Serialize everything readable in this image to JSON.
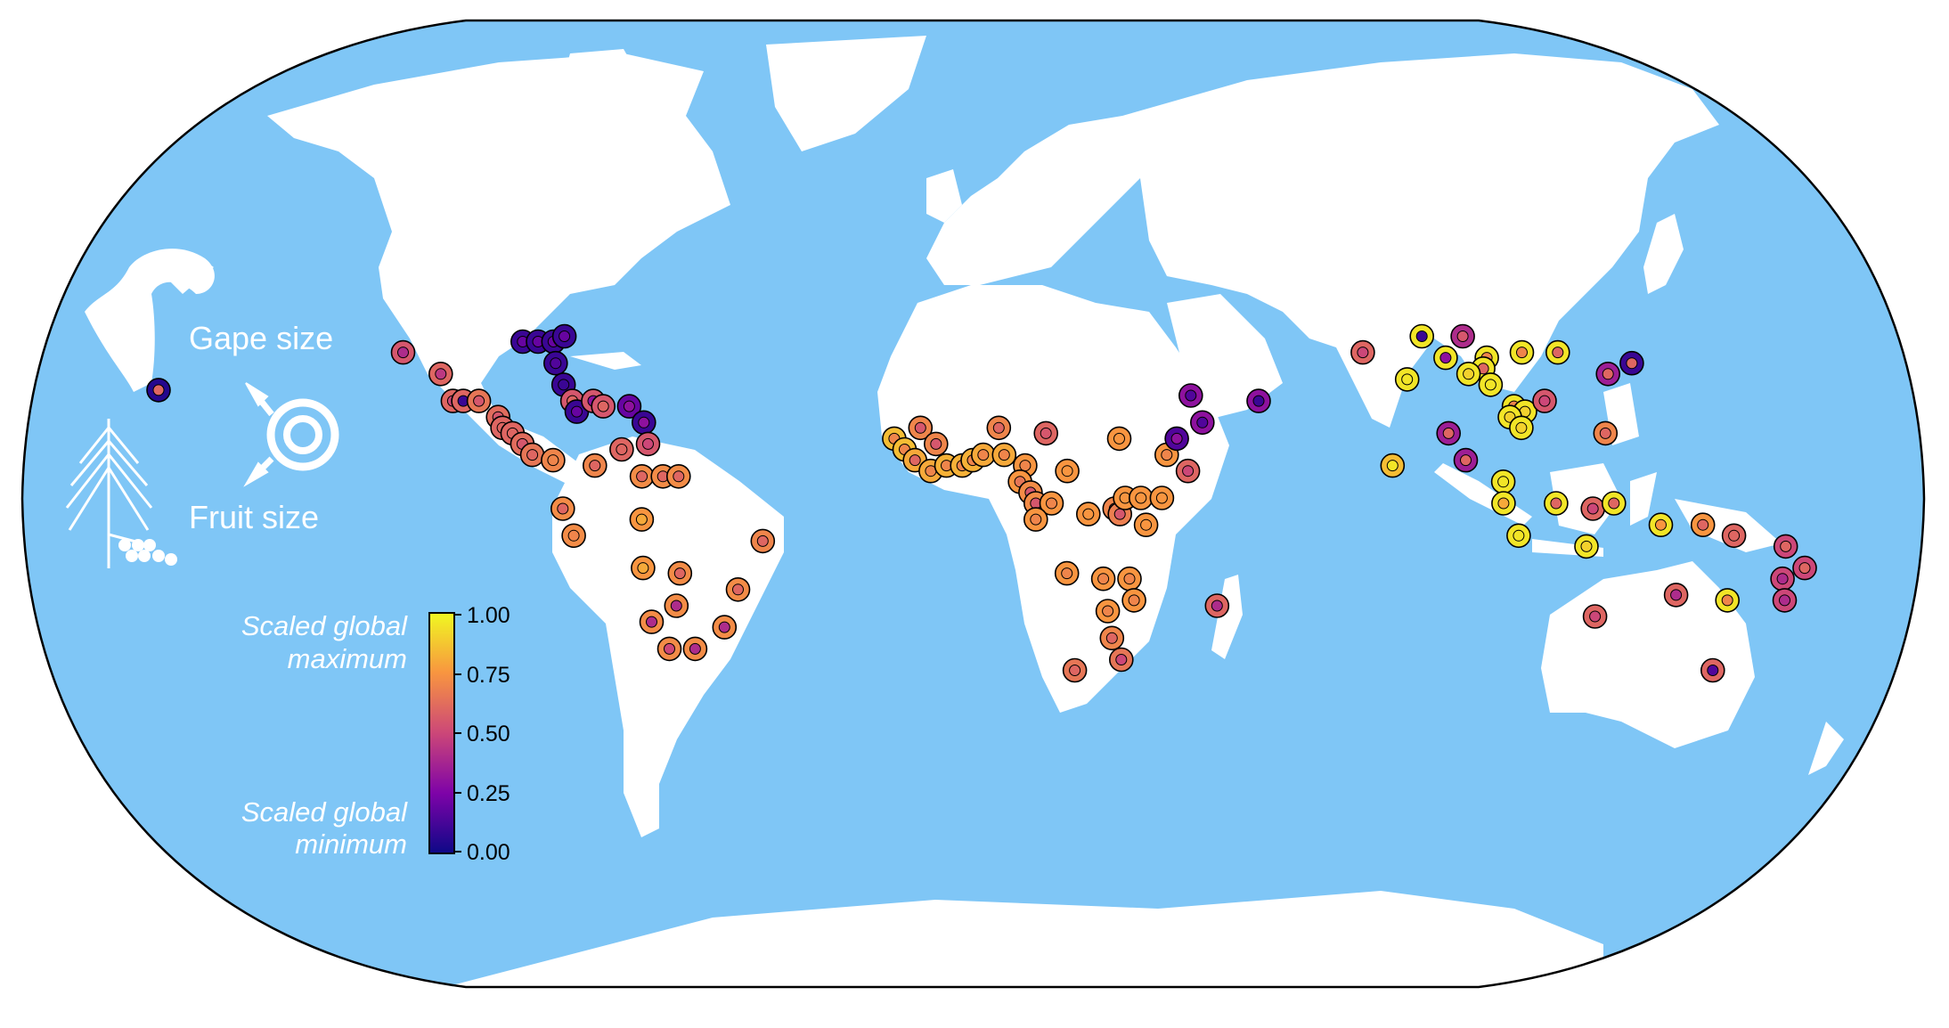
{
  "legend": {
    "gape_label": "Gape size",
    "fruit_label": "Fruit size",
    "colorbar_top_label_1": "Scaled global",
    "colorbar_top_label_2": "maximum",
    "colorbar_bottom_label_1": "Scaled global",
    "colorbar_bottom_label_2": "minimum",
    "ticks": [
      "1.00",
      "0.75",
      "0.50",
      "0.25",
      "0.00"
    ]
  },
  "colors": {
    "ocean": "#7fc6f6",
    "land": "#ffffff",
    "outline": "#000000",
    "scale_low": "#1b0c6b",
    "scale_mid": "#b23a8f",
    "scale_high": "#f9f33c"
  },
  "icons": [
    "toucan-icon",
    "palm-fruit-icon",
    "gape-fruit-arrow-icon"
  ],
  "chart_data": {
    "type": "scatter",
    "note_colorscale": "plasma-like, 0.00 to 1.00",
    "series": [
      {
        "name": "Gape size",
        "values_desc": "outer ring color"
      },
      {
        "name": "Fruit size",
        "values_desc": "inner dot color"
      }
    ],
    "points": [
      {
        "lon": -157,
        "lat": 21,
        "gape": 0.05,
        "fruit": 0.6
      },
      {
        "lon": -111,
        "lat": 28,
        "gape": 0.55,
        "fruit": 0.4
      },
      {
        "lon": -103,
        "lat": 24,
        "gape": 0.6,
        "fruit": 0.45
      },
      {
        "lon": -100,
        "lat": 19,
        "gape": 0.6,
        "fruit": 0.5
      },
      {
        "lon": -98,
        "lat": 19,
        "gape": 0.6,
        "fruit": 0.1
      },
      {
        "lon": -95,
        "lat": 19,
        "gape": 0.65,
        "fruit": 0.55
      },
      {
        "lon": -91,
        "lat": 16,
        "gape": 0.62,
        "fruit": 0.55
      },
      {
        "lon": -90,
        "lat": 14,
        "gape": 0.6,
        "fruit": 0.6
      },
      {
        "lon": -88,
        "lat": 13,
        "gape": 0.6,
        "fruit": 0.6
      },
      {
        "lon": -86,
        "lat": 11,
        "gape": 0.62,
        "fruit": 0.55
      },
      {
        "lon": -84,
        "lat": 9,
        "gape": 0.65,
        "fruit": 0.6
      },
      {
        "lon": -80,
        "lat": 8,
        "gape": 0.7,
        "fruit": 0.7
      },
      {
        "lon": -88,
        "lat": 30,
        "gape": 0.1,
        "fruit": 0.2
      },
      {
        "lon": -85,
        "lat": 30,
        "gape": 0.1,
        "fruit": 0.2
      },
      {
        "lon": -82,
        "lat": 30,
        "gape": 0.1,
        "fruit": 0.2
      },
      {
        "lon": -80,
        "lat": 31,
        "gape": 0.1,
        "fruit": 0.2
      },
      {
        "lon": -81,
        "lat": 26,
        "gape": 0.1,
        "fruit": 0.15
      },
      {
        "lon": -79,
        "lat": 22,
        "gape": 0.1,
        "fruit": 0.1
      },
      {
        "lon": -77,
        "lat": 19,
        "gape": 0.55,
        "fruit": 0.6
      },
      {
        "lon": -76,
        "lat": 17,
        "gape": 0.1,
        "fruit": 0.2
      },
      {
        "lon": -73,
        "lat": 19,
        "gape": 0.55,
        "fruit": 0.3
      },
      {
        "lon": -71,
        "lat": 18,
        "gape": 0.55,
        "fruit": 0.6
      },
      {
        "lon": -66,
        "lat": 18,
        "gape": 0.2,
        "fruit": 0.3
      },
      {
        "lon": -63,
        "lat": 15,
        "gape": 0.1,
        "fruit": 0.3
      },
      {
        "lon": -62,
        "lat": 11,
        "gape": 0.55,
        "fruit": 0.5
      },
      {
        "lon": -67,
        "lat": 10,
        "gape": 0.6,
        "fruit": 0.6
      },
      {
        "lon": -72,
        "lat": 7,
        "gape": 0.7,
        "fruit": 0.6
      },
      {
        "lon": -63,
        "lat": 5,
        "gape": 0.72,
        "fruit": 0.6
      },
      {
        "lon": -59,
        "lat": 5,
        "gape": 0.72,
        "fruit": 0.6
      },
      {
        "lon": -56,
        "lat": 5,
        "gape": 0.72,
        "fruit": 0.6
      },
      {
        "lon": -78,
        "lat": -1,
        "gape": 0.72,
        "fruit": 0.6
      },
      {
        "lon": -76,
        "lat": -6,
        "gape": 0.72,
        "fruit": 0.7
      },
      {
        "lon": -63,
        "lat": -3,
        "gape": 0.75,
        "fruit": 0.8
      },
      {
        "lon": -40,
        "lat": -7,
        "gape": 0.7,
        "fruit": 0.6
      },
      {
        "lon": -63,
        "lat": -12,
        "gape": 0.75,
        "fruit": 0.8
      },
      {
        "lon": -56,
        "lat": -13,
        "gape": 0.72,
        "fruit": 0.6
      },
      {
        "lon": -45,
        "lat": -16,
        "gape": 0.72,
        "fruit": 0.6
      },
      {
        "lon": -57,
        "lat": -19,
        "gape": 0.72,
        "fruit": 0.4
      },
      {
        "lon": -48,
        "lat": -23,
        "gape": 0.72,
        "fruit": 0.4
      },
      {
        "lon": -62,
        "lat": -22,
        "gape": 0.72,
        "fruit": 0.4
      },
      {
        "lon": -59,
        "lat": -27,
        "gape": 0.72,
        "fruit": 0.5
      },
      {
        "lon": -54,
        "lat": -27,
        "gape": 0.72,
        "fruit": 0.4
      },
      {
        "lon": -15,
        "lat": 12,
        "gape": 0.85,
        "fruit": 0.7
      },
      {
        "lon": -13,
        "lat": 10,
        "gape": 0.85,
        "fruit": 0.7
      },
      {
        "lon": -11,
        "lat": 8,
        "gape": 0.8,
        "fruit": 0.6
      },
      {
        "lon": -8,
        "lat": 6,
        "gape": 0.8,
        "fruit": 0.7
      },
      {
        "lon": -5,
        "lat": 7,
        "gape": 0.82,
        "fruit": 0.7
      },
      {
        "lon": -2,
        "lat": 7,
        "gape": 0.82,
        "fruit": 0.7
      },
      {
        "lon": 0,
        "lat": 8,
        "gape": 0.82,
        "fruit": 0.7
      },
      {
        "lon": 2,
        "lat": 9,
        "gape": 0.8,
        "fruit": 0.7
      },
      {
        "lon": -10,
        "lat": 14,
        "gape": 0.7,
        "fruit": 0.55
      },
      {
        "lon": -7,
        "lat": 11,
        "gape": 0.7,
        "fruit": 0.55
      },
      {
        "lon": 5,
        "lat": 14,
        "gape": 0.7,
        "fruit": 0.6
      },
      {
        "lon": 14,
        "lat": 13,
        "gape": 0.6,
        "fruit": 0.55
      },
      {
        "lon": 28,
        "lat": 12,
        "gape": 0.75,
        "fruit": 0.75
      },
      {
        "lon": 6,
        "lat": 9,
        "gape": 0.8,
        "fruit": 0.7
      },
      {
        "lon": 10,
        "lat": 7,
        "gape": 0.75,
        "fruit": 0.7
      },
      {
        "lon": 9,
        "lat": 4,
        "gape": 0.75,
        "fruit": 0.65
      },
      {
        "lon": 11,
        "lat": 2,
        "gape": 0.72,
        "fruit": 0.55
      },
      {
        "lon": 12,
        "lat": 0,
        "gape": 0.72,
        "fruit": 0.55
      },
      {
        "lon": 15,
        "lat": 0,
        "gape": 0.75,
        "fruit": 0.7
      },
      {
        "lon": 12,
        "lat": -3,
        "gape": 0.75,
        "fruit": 0.7
      },
      {
        "lon": 18,
        "lat": 6,
        "gape": 0.75,
        "fruit": 0.75
      },
      {
        "lon": 22,
        "lat": -2,
        "gape": 0.75,
        "fruit": 0.75
      },
      {
        "lon": 27,
        "lat": -1,
        "gape": 0.7,
        "fruit": 0.6
      },
      {
        "lon": 28,
        "lat": -2,
        "gape": 0.68,
        "fruit": 0.55
      },
      {
        "lon": 29,
        "lat": 1,
        "gape": 0.75,
        "fruit": 0.75
      },
      {
        "lon": 32,
        "lat": 1,
        "gape": 0.75,
        "fruit": 0.75
      },
      {
        "lon": 36,
        "lat": 1,
        "gape": 0.75,
        "fruit": 0.75
      },
      {
        "lon": 37,
        "lat": 9,
        "gape": 0.75,
        "fruit": 0.7
      },
      {
        "lon": 39,
        "lat": 12,
        "gape": 0.15,
        "fruit": 0.3
      },
      {
        "lon": 41,
        "lat": 6,
        "gape": 0.6,
        "fruit": 0.5
      },
      {
        "lon": 33,
        "lat": -4,
        "gape": 0.75,
        "fruit": 0.75
      },
      {
        "lon": 18,
        "lat": -13,
        "gape": 0.75,
        "fruit": 0.7
      },
      {
        "lon": 25,
        "lat": -14,
        "gape": 0.75,
        "fruit": 0.7
      },
      {
        "lon": 30,
        "lat": -14,
        "gape": 0.75,
        "fruit": 0.7
      },
      {
        "lon": 31,
        "lat": -18,
        "gape": 0.75,
        "fruit": 0.7
      },
      {
        "lon": 26,
        "lat": -20,
        "gape": 0.75,
        "fruit": 0.7
      },
      {
        "lon": 27,
        "lat": -25,
        "gape": 0.7,
        "fruit": 0.6
      },
      {
        "lon": 29,
        "lat": -29,
        "gape": 0.65,
        "fruit": 0.5
      },
      {
        "lon": 20,
        "lat": -31,
        "gape": 0.65,
        "fruit": 0.6
      },
      {
        "lon": 47,
        "lat": -19,
        "gape": 0.6,
        "fruit": 0.4
      },
      {
        "lon": 42,
        "lat": 20,
        "gape": 0.3,
        "fruit": 0.15
      },
      {
        "lon": 44,
        "lat": 15,
        "gape": 0.3,
        "fruit": 0.15
      },
      {
        "lon": 55,
        "lat": 19,
        "gape": 0.3,
        "fruit": 0.1
      },
      {
        "lon": 76,
        "lat": 28,
        "gape": 0.6,
        "fruit": 0.5
      },
      {
        "lon": 88,
        "lat": 31,
        "gape": 0.95,
        "fruit": 0.1
      },
      {
        "lon": 96,
        "lat": 31,
        "gape": 0.4,
        "fruit": 0.55
      },
      {
        "lon": 92,
        "lat": 27,
        "gape": 0.95,
        "fruit": 0.3
      },
      {
        "lon": 84,
        "lat": 23,
        "gape": 0.95,
        "fruit": 0.95
      },
      {
        "lon": 100,
        "lat": 27,
        "gape": 0.95,
        "fruit": 0.7
      },
      {
        "lon": 99,
        "lat": 25,
        "gape": 0.95,
        "fruit": 0.6
      },
      {
        "lon": 96,
        "lat": 24,
        "gape": 0.95,
        "fruit": 0.9
      },
      {
        "lon": 100,
        "lat": 22,
        "gape": 0.95,
        "fruit": 0.95
      },
      {
        "lon": 107,
        "lat": 28,
        "gape": 0.95,
        "fruit": 0.7
      },
      {
        "lon": 114,
        "lat": 28,
        "gape": 0.95,
        "fruit": 0.6
      },
      {
        "lon": 104,
        "lat": 18,
        "gape": 0.95,
        "fruit": 0.7
      },
      {
        "lon": 106,
        "lat": 17,
        "gape": 0.95,
        "fruit": 0.9
      },
      {
        "lon": 103,
        "lat": 16,
        "gape": 0.95,
        "fruit": 0.9
      },
      {
        "lon": 105,
        "lat": 14,
        "gape": 0.95,
        "fruit": 0.9
      },
      {
        "lon": 110,
        "lat": 19,
        "gape": 0.55,
        "fruit": 0.5
      },
      {
        "lon": 123,
        "lat": 24,
        "gape": 0.35,
        "fruit": 0.6
      },
      {
        "lon": 128,
        "lat": 26,
        "gape": 0.1,
        "fruit": 0.6
      },
      {
        "lon": 91,
        "lat": 13,
        "gape": 0.35,
        "fruit": 0.6
      },
      {
        "lon": 80,
        "lat": 7,
        "gape": 0.85,
        "fruit": 0.95
      },
      {
        "lon": 94,
        "lat": 8,
        "gape": 0.35,
        "fruit": 0.6
      },
      {
        "lon": 121,
        "lat": 13,
        "gape": 0.7,
        "fruit": 0.6
      },
      {
        "lon": 101,
        "lat": 4,
        "gape": 0.95,
        "fruit": 0.95
      },
      {
        "lon": 101,
        "lat": 0,
        "gape": 0.95,
        "fruit": 0.8
      },
      {
        "lon": 111,
        "lat": 0,
        "gape": 0.95,
        "fruit": 0.6
      },
      {
        "lon": 118,
        "lat": -1,
        "gape": 0.6,
        "fruit": 0.5
      },
      {
        "lon": 122,
        "lat": 0,
        "gape": 0.95,
        "fruit": 0.6
      },
      {
        "lon": 104,
        "lat": -6,
        "gape": 0.95,
        "fruit": 0.95
      },
      {
        "lon": 117,
        "lat": -8,
        "gape": 0.95,
        "fruit": 0.9
      },
      {
        "lon": 131,
        "lat": -4,
        "gape": 0.95,
        "fruit": 0.75
      },
      {
        "lon": 139,
        "lat": -4,
        "gape": 0.75,
        "fruit": 0.6
      },
      {
        "lon": 145,
        "lat": -6,
        "gape": 0.6,
        "fruit": 0.6
      },
      {
        "lon": 155,
        "lat": -8,
        "gape": 0.5,
        "fruit": 0.6
      },
      {
        "lon": 155,
        "lat": -14,
        "gape": 0.5,
        "fruit": 0.4
      },
      {
        "lon": 159,
        "lat": -12,
        "gape": 0.5,
        "fruit": 0.6
      },
      {
        "lon": 156,
        "lat": -18,
        "gape": 0.5,
        "fruit": 0.4
      },
      {
        "lon": 120,
        "lat": -21,
        "gape": 0.6,
        "fruit": 0.5
      },
      {
        "lon": 135,
        "lat": -17,
        "gape": 0.6,
        "fruit": 0.4
      },
      {
        "lon": 145,
        "lat": -18,
        "gape": 0.95,
        "fruit": 0.7
      },
      {
        "lon": 145,
        "lat": -31,
        "gape": 0.6,
        "fruit": 0.15
      }
    ]
  }
}
